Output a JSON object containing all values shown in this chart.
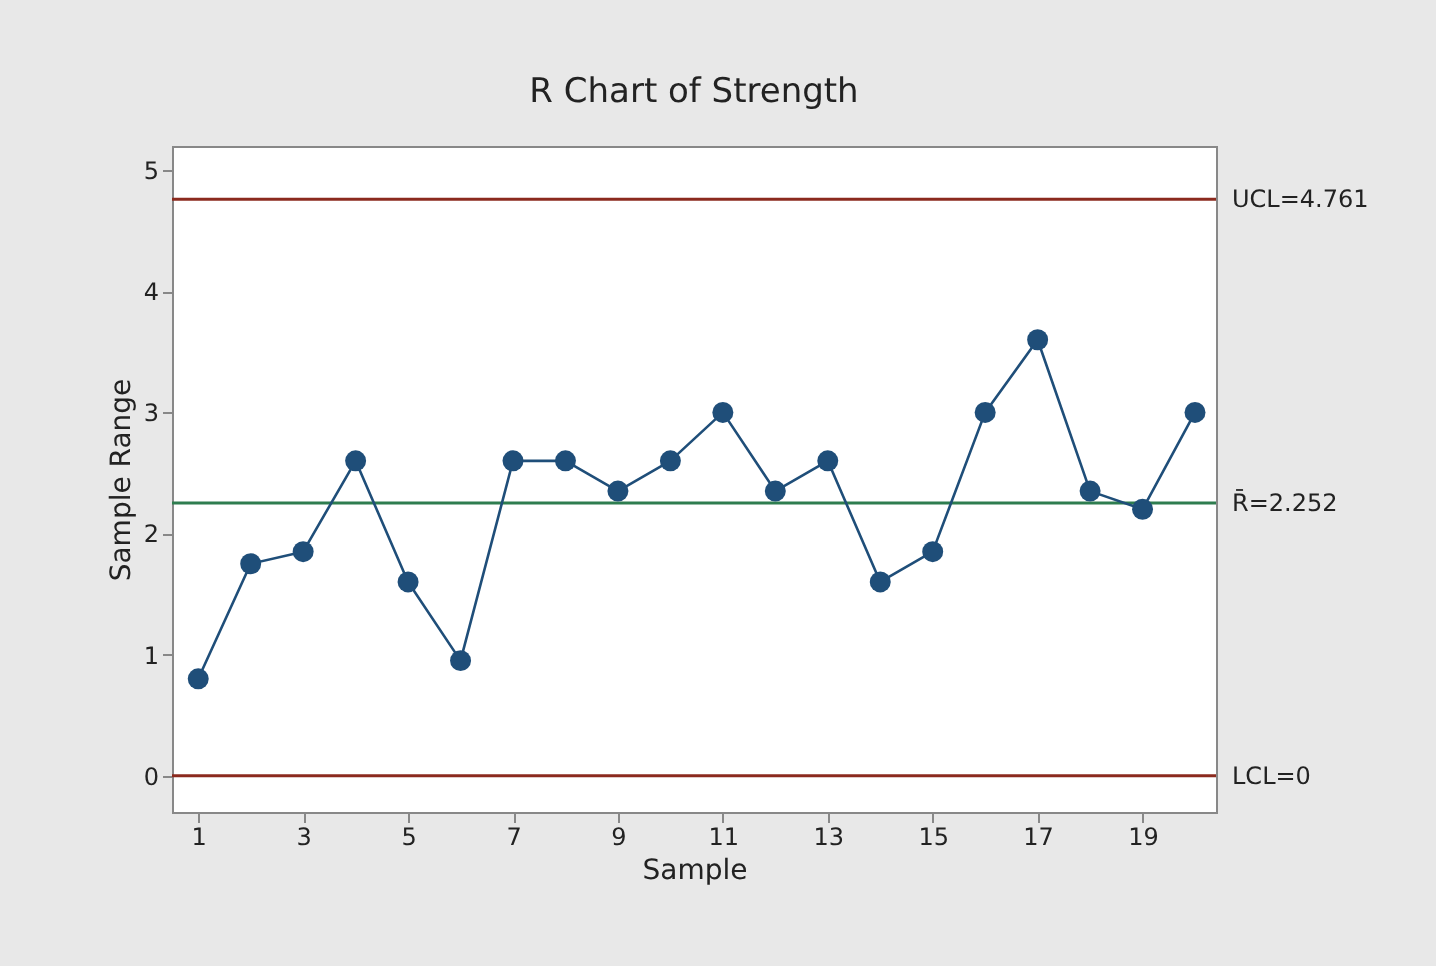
{
  "chart_data": {
    "type": "line",
    "title": "R Chart of Strength",
    "xlabel": "Sample",
    "ylabel": "Sample Range",
    "x": [
      1,
      2,
      3,
      4,
      5,
      6,
      7,
      8,
      9,
      10,
      11,
      12,
      13,
      14,
      15,
      16,
      17,
      18,
      19,
      20
    ],
    "series": [
      {
        "color": "#1f4e79",
        "values": [
          0.8,
          1.75,
          1.85,
          2.6,
          1.6,
          0.95,
          2.6,
          2.6,
          2.35,
          2.6,
          3.0,
          2.35,
          2.6,
          1.6,
          1.85,
          3.0,
          3.6,
          2.35,
          2.2,
          3.0
        ]
      }
    ],
    "xlim": [
      0.5,
      20.4
    ],
    "xticks": [
      1,
      3,
      5,
      7,
      9,
      11,
      13,
      15,
      17,
      19
    ],
    "ylim": [
      -0.3,
      5.2
    ],
    "yticks": [
      0,
      1,
      2,
      3,
      4,
      5
    ],
    "ref_lines": [
      {
        "axis": "y",
        "value": 4.761,
        "label": "UCL=4.761",
        "color": "#8b2a1e"
      },
      {
        "axis": "y",
        "value": 2.252,
        "label": "R̄=2.252",
        "color": "#2e7d4f"
      },
      {
        "axis": "y",
        "value": 0,
        "label": "LCL=0",
        "color": "#8b2a1e"
      }
    ],
    "marker": "circle",
    "line_style": "solid"
  }
}
